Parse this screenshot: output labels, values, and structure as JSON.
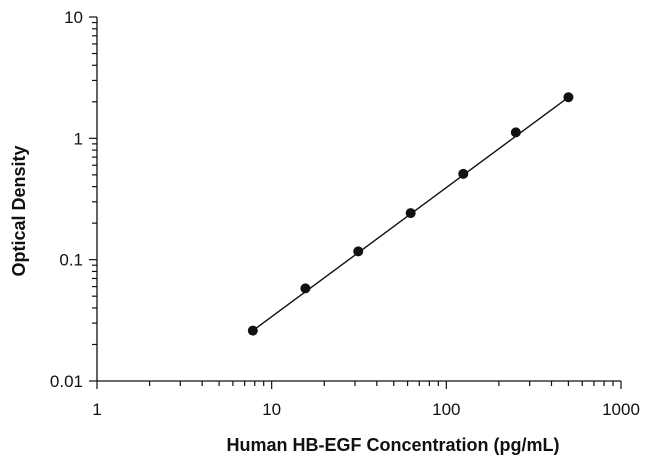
{
  "chart_data": {
    "type": "scatter",
    "xlabel": "Human HB-EGF Concentration (pg/mL)",
    "ylabel": "Optical Density",
    "xscale": "log",
    "yscale": "log",
    "xlim": [
      1,
      1000
    ],
    "ylim": [
      0.01,
      10
    ],
    "xticks": [
      {
        "value": 1,
        "label": "1"
      },
      {
        "value": 10,
        "label": "10"
      },
      {
        "value": 100,
        "label": "100"
      },
      {
        "value": 1000,
        "label": "1000"
      }
    ],
    "yticks": [
      {
        "value": 0.01,
        "label": "0.01"
      },
      {
        "value": 0.1,
        "label": "0.1"
      },
      {
        "value": 1,
        "label": "1"
      },
      {
        "value": 10,
        "label": "10"
      }
    ],
    "grid": false,
    "fit_line": true,
    "series": [
      {
        "points": [
          {
            "x": 7.8,
            "y": 0.026
          },
          {
            "x": 15.6,
            "y": 0.058
          },
          {
            "x": 31.3,
            "y": 0.117
          },
          {
            "x": 62.5,
            "y": 0.242
          },
          {
            "x": 125,
            "y": 0.51
          },
          {
            "x": 250,
            "y": 1.12
          },
          {
            "x": 500,
            "y": 2.18
          }
        ],
        "color": "#111111"
      }
    ]
  }
}
